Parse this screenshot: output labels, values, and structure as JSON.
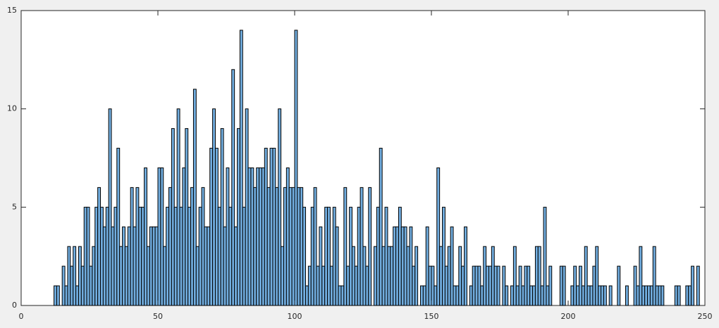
{
  "chart_data": {
    "type": "histogram",
    "bins": [
      12,
      13,
      14,
      15,
      16,
      17,
      18,
      19,
      20,
      21,
      22,
      23,
      24,
      25,
      26,
      27,
      28,
      29,
      30,
      31,
      32,
      33,
      34,
      35,
      36,
      37,
      38,
      39,
      40,
      41,
      42,
      43,
      44,
      45,
      46,
      47,
      48,
      49,
      50,
      51,
      52,
      53,
      54,
      55,
      56,
      57,
      58,
      59,
      60,
      61,
      62,
      63,
      64,
      65,
      66,
      67,
      68,
      69,
      70,
      71,
      72,
      73,
      74,
      75,
      76,
      77,
      78,
      79,
      80,
      81,
      82,
      83,
      84,
      85,
      86,
      87,
      88,
      89,
      90,
      91,
      92,
      93,
      94,
      95,
      96,
      97,
      98,
      99,
      100,
      101,
      102,
      103,
      104,
      105,
      106,
      107,
      108,
      109,
      110,
      111,
      112,
      113,
      114,
      115,
      116,
      117,
      118,
      119,
      120,
      121,
      122,
      123,
      124,
      125,
      126,
      127,
      128,
      129,
      130,
      131,
      132,
      133,
      134,
      135,
      136,
      137,
      138,
      139,
      140,
      141,
      142,
      143,
      144,
      145,
      146,
      147,
      148,
      149,
      150,
      151,
      152,
      153,
      154,
      155,
      156,
      157,
      158,
      159,
      160,
      161,
      162,
      163,
      164,
      165,
      166,
      167,
      168,
      169,
      170,
      171,
      172,
      173,
      174,
      175,
      176,
      177,
      178,
      179,
      180,
      181,
      182,
      183,
      184,
      185,
      186,
      187,
      188,
      189,
      190,
      191,
      192,
      193,
      194,
      195,
      196,
      197,
      198,
      199,
      200,
      201,
      202,
      203,
      204,
      205,
      206,
      207,
      208,
      209,
      210,
      211,
      212,
      213,
      214,
      215,
      216,
      217,
      218,
      219,
      220,
      221,
      222,
      223,
      224,
      225,
      226,
      227,
      228,
      229,
      230,
      231,
      232,
      233,
      234,
      235,
      236,
      237,
      238,
      239,
      240,
      241,
      242,
      243,
      244,
      245,
      246,
      247,
      248
    ],
    "values": [
      1,
      1,
      0,
      2,
      1,
      3,
      2,
      3,
      1,
      3,
      2,
      5,
      5,
      2,
      3,
      5,
      6,
      5,
      4,
      5,
      10,
      4,
      5,
      8,
      3,
      4,
      3,
      4,
      6,
      4,
      6,
      5,
      5,
      7,
      3,
      4,
      4,
      4,
      7,
      7,
      3,
      5,
      6,
      9,
      5,
      10,
      5,
      7,
      9,
      5,
      6,
      11,
      3,
      5,
      6,
      4,
      4,
      8,
      10,
      8,
      5,
      9,
      4,
      7,
      5,
      12,
      4,
      9,
      14,
      5,
      10,
      7,
      7,
      6,
      7,
      7,
      7,
      8,
      6,
      8,
      8,
      6,
      10,
      3,
      6,
      7,
      6,
      6,
      14,
      6,
      6,
      5,
      1,
      2,
      5,
      6,
      2,
      4,
      2,
      5,
      5,
      2,
      5,
      4,
      1,
      1,
      6,
      2,
      5,
      3,
      2,
      5,
      6,
      3,
      2,
      6,
      0,
      3,
      5,
      8,
      3,
      5,
      3,
      3,
      4,
      4,
      5,
      4,
      4,
      3,
      4,
      2,
      3,
      0,
      1,
      1,
      4,
      2,
      2,
      1,
      7,
      3,
      5,
      2,
      3,
      4,
      1,
      1,
      3,
      2,
      4,
      0,
      1,
      2,
      2,
      2,
      1,
      3,
      2,
      2,
      3,
      2,
      2,
      0,
      2,
      1,
      0,
      1,
      3,
      1,
      2,
      1,
      2,
      2,
      1,
      1,
      3,
      3,
      1,
      5,
      1,
      2,
      0,
      0,
      0,
      2,
      2,
      0,
      0,
      1,
      2,
      1,
      2,
      1,
      3,
      1,
      1,
      2,
      3,
      1,
      1,
      1,
      0,
      1,
      0,
      0,
      2,
      0,
      0,
      1,
      0,
      0,
      2,
      1,
      3,
      1,
      1,
      1,
      1,
      3,
      1,
      1,
      1,
      0,
      0,
      0,
      0,
      1,
      1,
      0,
      0,
      1,
      1,
      2,
      0,
      2
    ],
    "color": "#72aee0",
    "xlim": [
      0,
      250
    ],
    "xticks": [
      0,
      50,
      100,
      150,
      200,
      250
    ],
    "ylim": [
      0,
      15
    ],
    "yticks": [
      0,
      5,
      10,
      15
    ]
  }
}
